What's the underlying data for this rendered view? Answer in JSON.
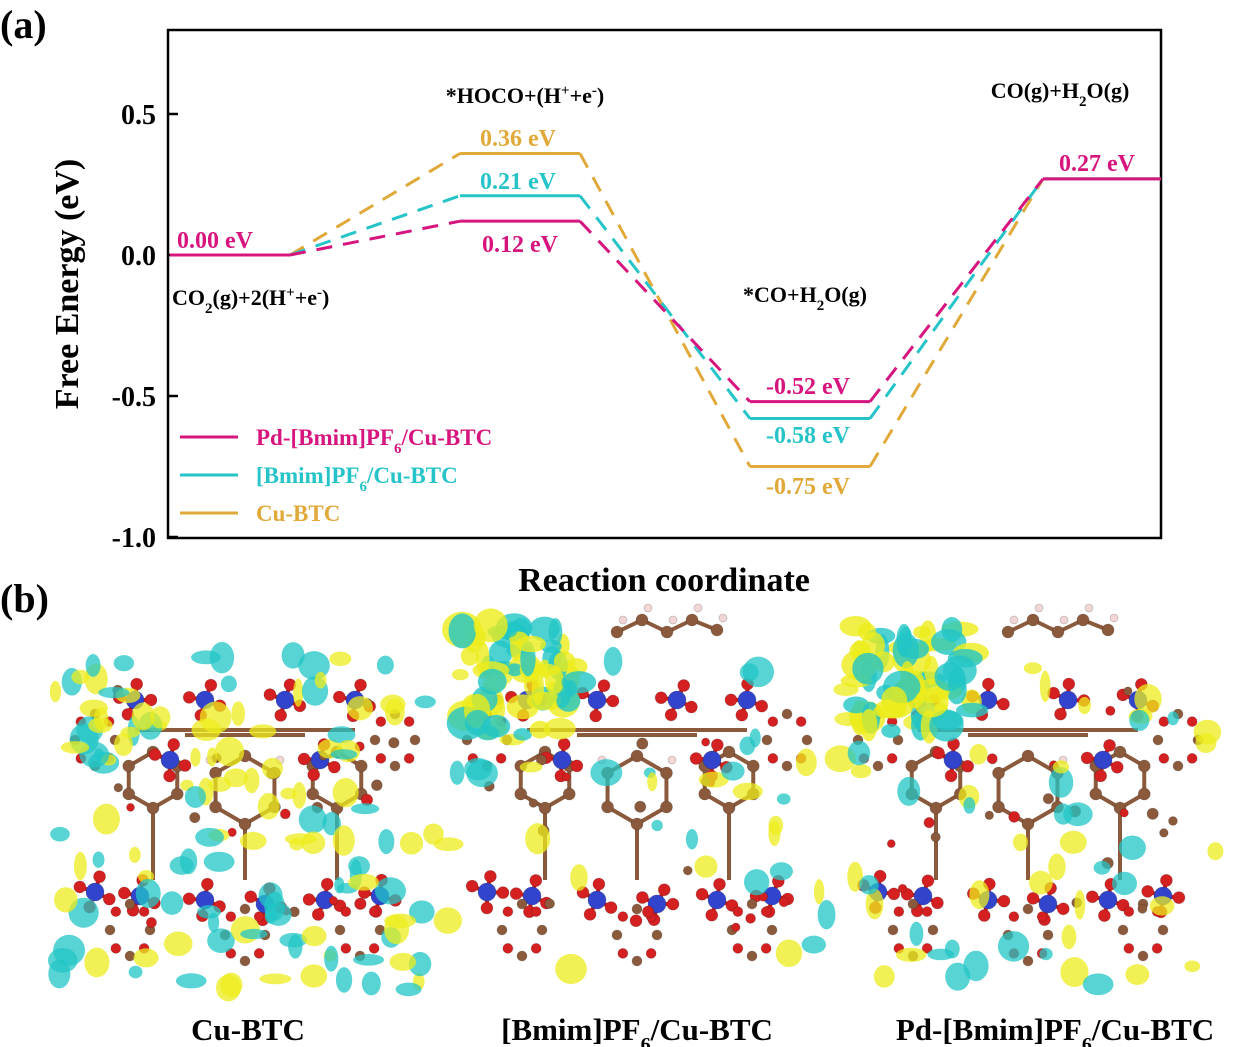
{
  "panels": {
    "a": "(a)",
    "b": "(b)"
  },
  "chart_data": {
    "type": "line",
    "subtype": "energy-profile",
    "xlabel": "Reaction coordinate",
    "ylabel": "Free Energy (eV)",
    "ylim": [
      -1.0,
      0.8
    ],
    "yticks": [
      0.5,
      0.0,
      -0.5,
      -1.0
    ],
    "ytick_labels": [
      "0.5",
      "0.0",
      "-0.5",
      "-1.0"
    ],
    "grid": false,
    "legend_position": "bottom-left",
    "states": [
      {
        "main": "CO",
        "sub": "2",
        "mid": "(g)+2(H",
        "sup": "+",
        "tail": "+e",
        "sup2": "-",
        "end": ")"
      },
      {
        "main": "*HOCO+(H",
        "sup": "+",
        "tail": "+e",
        "sup2": "-",
        "end": ")"
      },
      {
        "main": "*CO+H",
        "sub": "2",
        "mid": "O(g)"
      },
      {
        "main": "CO(g)+H",
        "sub": "2",
        "mid": "O(g)"
      }
    ],
    "series": [
      {
        "name_main": "Pd-[Bmim]PF",
        "name_sub": "6",
        "name_tail": "/Cu-BTC",
        "color": "#d6157e",
        "values": [
          0.0,
          0.12,
          -0.52,
          0.27
        ],
        "labels": [
          "0.00 eV",
          "0.12 eV",
          "-0.52 eV",
          "0.27 eV"
        ]
      },
      {
        "name_main": "[Bmim]PF",
        "name_sub": "6",
        "name_tail": "/Cu-BTC",
        "color": "#26c4c9",
        "values": [
          0.0,
          0.21,
          -0.58,
          0.27
        ],
        "labels": [
          "",
          "0.21 eV",
          "-0.58 eV",
          ""
        ]
      },
      {
        "name_main": "Cu-BTC",
        "name_sub": "",
        "name_tail": "",
        "color": "#e0a93a",
        "values": [
          0.0,
          0.36,
          -0.75,
          0.27
        ],
        "labels": [
          "",
          "0.36 eV",
          "-0.75 eV",
          ""
        ]
      }
    ]
  },
  "structures": [
    {
      "main": "Cu-BTC",
      "sub": "",
      "tail": ""
    },
    {
      "main": "[Bmim]PF",
      "sub": "6",
      "tail": "/Cu-BTC"
    },
    {
      "main": "Pd-[Bmim]PF",
      "sub": "6",
      "tail": "/Cu-BTC"
    }
  ],
  "colors": {
    "carbon": "#8b5a3c",
    "oxygen": "#d42020",
    "copper": "#3344cc",
    "hydrogen": "#f1d6d6",
    "iso_yellow": "#ecec1c",
    "iso_cyan": "#22c6c6"
  }
}
